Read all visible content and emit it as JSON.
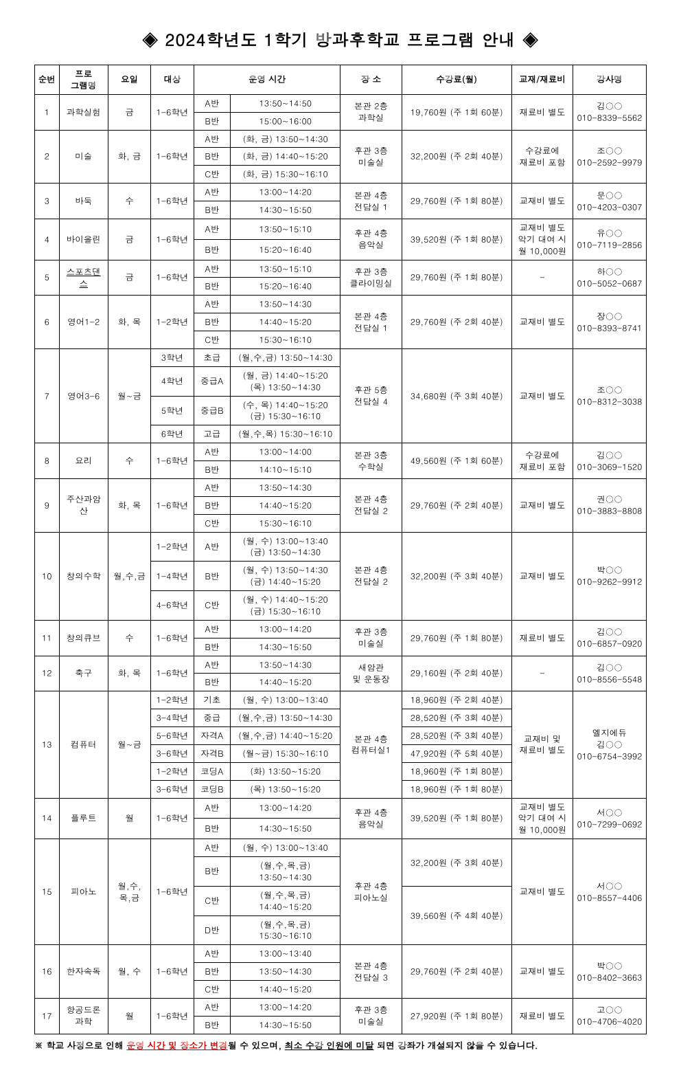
{
  "title": "◈ 2024학년도 1학기 방과후학교 프로그램 안내 ◈",
  "headers": {
    "no": "순번",
    "program": "프로\n그램명",
    "days": "요일",
    "target": "대상",
    "optime": "운영 시간",
    "place": "장 소",
    "fee": "수강료(월)",
    "material": "교재/재료비",
    "teacher": "강사명"
  },
  "rows": {
    "r1": {
      "no": "1",
      "program": "과학실험",
      "days": "금",
      "target": "1-6학년",
      "classes": [
        "A반",
        "B반"
      ],
      "times": [
        "13:50~14:50",
        "15:00~16:00"
      ],
      "place": "본관 2층\n과학실",
      "fee": "19,760원 (주 1회 60분)",
      "material": "재료비 별도",
      "teacher": "김○○\n010-8339-5562"
    },
    "r2": {
      "no": "2",
      "program": "미술",
      "days": "화, 금",
      "target": "1-6학년",
      "classes": [
        "A반",
        "B반",
        "C반"
      ],
      "times": [
        "(화, 금) 13:50~14:30",
        "(화, 금) 14:40~15:20",
        "(화, 금) 15:30~16:10"
      ],
      "place": "후관 3층\n미술실",
      "fee": "32,200원 (주 2회 40분)",
      "material": "수강료에\n재료비 포함",
      "teacher": "조○○\n010-2592-9979"
    },
    "r3": {
      "no": "3",
      "program": "바둑",
      "days": "수",
      "target": "1-6학년",
      "classes": [
        "A반",
        "B반"
      ],
      "times": [
        "13:00~14:20",
        "14:30~15:50"
      ],
      "place": "본관 4층\n전담실 1",
      "fee": "29,760원 (주 1회 80분)",
      "material": "교재비 별도",
      "teacher": "문○○\n010-4203-0307"
    },
    "r4": {
      "no": "4",
      "program": "바이올린",
      "days": "금",
      "target": "1-6학년",
      "classes": [
        "A반",
        "B반"
      ],
      "times": [
        "13:50~15:10",
        "15:20~16:40"
      ],
      "place": "후관 4층\n음악실",
      "fee": "39,520원 (주 1회 80분)",
      "material": "교재비 별도\n악기 대여 시\n월 10,000원",
      "teacher": "유○○\n010-7119-2856"
    },
    "r5": {
      "no": "5",
      "program": "스포츠댄스",
      "days": "금",
      "target": "1-6학년",
      "classes": [
        "A반",
        "B반"
      ],
      "times": [
        "13:50~15:10",
        "15:20~16:40"
      ],
      "place": "후관 3층\n클라이밍실",
      "fee": "29,760원 (주 1회 80분)",
      "material": "-",
      "teacher": "하○○\n010-5052-0687",
      "underlineProgram": true
    },
    "r6": {
      "no": "6",
      "program": "영어1-2",
      "days": "화, 목",
      "target": "1-2학년",
      "classes": [
        "A반",
        "B반",
        "C반"
      ],
      "times": [
        "13:50~14:30",
        "14:40~15:20",
        "15:30~16:10"
      ],
      "place": "본관 4층\n전담실 1",
      "fee": "29,760원 (주 2회 40분)",
      "material": "교재비 별도",
      "teacher": "장○○\n010-8393-8741"
    },
    "r7": {
      "no": "7",
      "program": "영어3-6",
      "days": "월~금",
      "targets": [
        "3학년",
        "4학년",
        "5학년",
        "6학년"
      ],
      "classes": [
        "초급",
        "중급A",
        "중급B",
        "고급"
      ],
      "times": [
        "(월,수,금) 13:50~14:30",
        "(월, 금) 14:40~15:20\n(목) 13:50~14:30",
        "(수, 목) 14:40~15:20\n(금) 15:30~16:10",
        "(월,수,목) 15:30~16:10"
      ],
      "place": "후관 5층\n전담실 4",
      "fee": "34,680원 (주 3회 40분)",
      "material": "교재비 별도",
      "teacher": "조○○\n010-8312-3038"
    },
    "r8": {
      "no": "8",
      "program": "요리",
      "days": "수",
      "target": "1-6학년",
      "classes": [
        "A반",
        "B반"
      ],
      "times": [
        "13:00~14:00",
        "14:10~15:10"
      ],
      "place": "본관 3층\n수학실",
      "fee": "49,560원 (주 1회 60분)",
      "material": "수강료에\n재료비 포함",
      "teacher": "김○○\n010-3069-1520"
    },
    "r9": {
      "no": "9",
      "program": "주산과암산",
      "days": "화, 목",
      "target": "1-6학년",
      "classes": [
        "A반",
        "B반",
        "C반"
      ],
      "times": [
        "13:50~14:30",
        "14:40~15:20",
        "15:30~16:10"
      ],
      "place": "본관 4층\n전담실 2",
      "fee": "29,760원 (주 2회 40분)",
      "material": "교재비 별도",
      "teacher": "권○○\n010-3883-8808"
    },
    "r10": {
      "no": "10",
      "program": "창의수학",
      "days": "월,수,금",
      "targets": [
        "1-2학년",
        "1-4학년",
        "4-6학년"
      ],
      "classes": [
        "A반",
        "B반",
        "C반"
      ],
      "times": [
        "(월, 수) 13:00~13:40\n(금) 13:50~14:30",
        "(월, 수) 13:50~14:30\n(금) 14:40~15:20",
        "(월, 수) 14:40~15:20\n(금) 15:30~16:10"
      ],
      "place": "본관 4층\n전담실 2",
      "fee": "32,200원 (주 3회 40분)",
      "material": "교재비 별도",
      "teacher": "박○○\n010-9262-9912"
    },
    "r11": {
      "no": "11",
      "program": "창의큐브",
      "days": "수",
      "target": "1-6학년",
      "classes": [
        "A반",
        "B반"
      ],
      "times": [
        "13:00~14:20",
        "14:30~15:50"
      ],
      "place": "후관 3층\n미술실",
      "fee": "29,760원 (주 1회 80분)",
      "material": "재료비 별도",
      "teacher": "김○○\n010-6857-0920"
    },
    "r12": {
      "no": "12",
      "program": "축구",
      "days": "화, 목",
      "target": "1-6학년",
      "classes": [
        "A반",
        "B반"
      ],
      "times": [
        "13:50~14:30",
        "14:40~15:20"
      ],
      "place": "새암관\n및 운동장",
      "fee": "29,160원 (주 2회 40분)",
      "material": "-",
      "teacher": "김○○\n010-8556-5548"
    },
    "r13": {
      "no": "13",
      "program": "컴퓨터",
      "days": "월~금",
      "targets": [
        "1-2학년",
        "3-4학년",
        "5-6학년",
        "3-6학년",
        "1-2학년",
        "3-6학년"
      ],
      "classes": [
        "기초",
        "중급",
        "자격A",
        "자격B",
        "코딩A",
        "코딩B"
      ],
      "times": [
        "(월, 수) 13:00~13:40",
        "(월,수,금) 13:50~14:30",
        "(월,수,금) 14:40~15:20",
        "(월~금) 15:30~16:10",
        "(화) 13:50~15:20",
        "(목) 13:50~15:20"
      ],
      "fees": [
        "18,960원 (주 2회 40분)",
        "28,520원 (주 3회 40분)",
        "28,520원 (주 3회 40분)",
        "47,920원 (주 5회 40분)",
        "18,960원 (주 1회 80분)",
        "18,960원 (주 1회 80분)"
      ],
      "place": "본관 4층\n컴퓨터실1",
      "material": "교재비 및\n재료비 별도",
      "teacher": "엘지에듀\n김○○\n010-6754-3992"
    },
    "r14": {
      "no": "14",
      "program": "플루트",
      "days": "월",
      "target": "1-6학년",
      "classes": [
        "A반",
        "B반"
      ],
      "times": [
        "13:00~14:20",
        "14:30~15:50"
      ],
      "place": "후관 4층\n음악실",
      "fee": "39,520원 (주 1회 80분)",
      "material": "교재비 별도\n악기 대여 시\n월 10,000원",
      "teacher": "서○○\n010-7299-0692"
    },
    "r15": {
      "no": "15",
      "program": "피아노",
      "days": "월,수,\n목,금",
      "target": "1-6학년",
      "classes": [
        "A반",
        "B반",
        "C반",
        "D반"
      ],
      "times": [
        "(월, 수) 13:00~13:40",
        "(월,수,목,금) 13:50~14:30",
        "(월,수,목,금) 14:40~15:20",
        "(월,수,목,금) 15:30~16:10"
      ],
      "fees2": [
        "32,200원 (주 3회 40분)",
        "39,560원 (주 4회 40분)"
      ],
      "feeSpans": [
        2,
        2
      ],
      "place": "후관 4층\n피아노실",
      "material": "교재비 별도",
      "teacher": "서○○\n010-8557-4406"
    },
    "r16": {
      "no": "16",
      "program": "한자속독",
      "days": "월, 수",
      "target": "1-6학년",
      "classes": [
        "A반",
        "B반",
        "C반"
      ],
      "times": [
        "13:00~13:40",
        "13:50~14:30",
        "14:40~15:20"
      ],
      "place": "본관 4층\n전담실 3",
      "fee": "29,760원 (주 2회 40분)",
      "material": "교재비 별도",
      "teacher": "박○○\n010-8402-3663"
    },
    "r17": {
      "no": "17",
      "program": "항공드론\n과학",
      "days": "월",
      "target": "1-6학년",
      "classes": [
        "A반",
        "B반"
      ],
      "times": [
        "13:00~14:20",
        "14:30~15:50"
      ],
      "place": "후관 3층\n미술실",
      "fee": "27,920원 (주 1회 80분)",
      "material": "재료비 별도",
      "teacher": "고○○\n010-4706-4020"
    }
  },
  "footnote": {
    "prefix": "※ 학교 사정으로 인해 ",
    "red": "운영 시간 및 장소가 변경",
    "mid": "될 수 있으며, ",
    "u2": "최소 수강 인원에 미달",
    "suffix": " 되면 강좌가 개설되지 않을 수 있습니다."
  }
}
